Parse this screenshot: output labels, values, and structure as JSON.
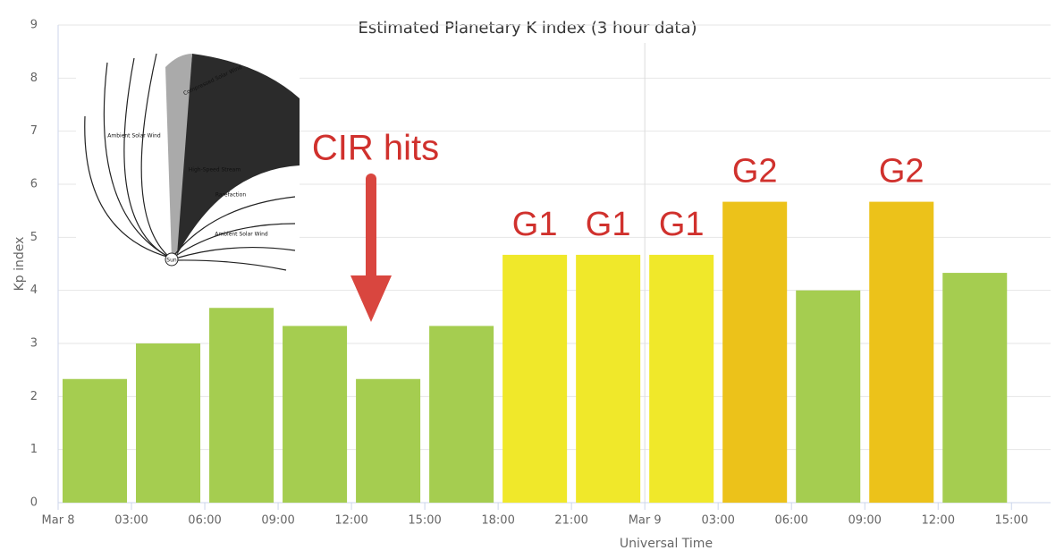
{
  "chart_data": {
    "type": "bar",
    "title": "Estimated Planetary K index (3 hour data)",
    "xlabel": "Universal Time",
    "ylabel": "Kp index",
    "x": [
      0,
      3,
      6,
      9,
      12,
      15,
      18,
      21,
      24,
      27,
      30,
      33,
      36
    ],
    "values": [
      2.33,
      3,
      3.67,
      3.33,
      2.33,
      3.33,
      4.67,
      4.67,
      4.67,
      5.67,
      4,
      5.67,
      4.33
    ],
    "colors": [
      "#a5cd50",
      "#a5cd50",
      "#a5cd50",
      "#a5cd50",
      "#a5cd50",
      "#a5cd50",
      "#f0e82a",
      "#f0e82a",
      "#f0e82a",
      "#ecc21a",
      "#a5cd50",
      "#ecc21a",
      "#a5cd50"
    ],
    "xlim": [
      0,
      40.6
    ],
    "xticks": [
      {
        "value": 0,
        "label": "Mar 8"
      },
      {
        "value": 3,
        "label": "03:00"
      },
      {
        "value": 6,
        "label": "06:00"
      },
      {
        "value": 9,
        "label": "09:00"
      },
      {
        "value": 12,
        "label": "12:00"
      },
      {
        "value": 15,
        "label": "15:00"
      },
      {
        "value": 18,
        "label": "18:00"
      },
      {
        "value": 21,
        "label": "21:00"
      },
      {
        "value": 24,
        "label": "Mar 9"
      },
      {
        "value": 27,
        "label": "03:00"
      },
      {
        "value": 30,
        "label": "06:00"
      },
      {
        "value": 33,
        "label": "09:00"
      },
      {
        "value": 36,
        "label": "12:00"
      },
      {
        "value": 39,
        "label": "15:00"
      }
    ],
    "xlines": [
      24
    ],
    "ylim": [
      0,
      9
    ],
    "yticks": [
      0,
      1,
      2,
      3,
      4,
      5,
      6,
      7,
      8,
      9
    ],
    "grid": true,
    "annotations": [
      {
        "text": "G1",
        "bar": 6
      },
      {
        "text": "G1",
        "bar": 7
      },
      {
        "text": "G1",
        "bar": 8
      },
      {
        "text": "G2",
        "bar": 9
      },
      {
        "text": "G2",
        "bar": 11
      }
    ],
    "annotation_color": "#d0312d",
    "callout": "CIR hits",
    "inset_labels": [
      "Compressed Solar Wind",
      "Ambient Solar Wind",
      "High-Speed Stream",
      "Rarefaction",
      "Ambient Solar Wind",
      "Sun"
    ]
  }
}
